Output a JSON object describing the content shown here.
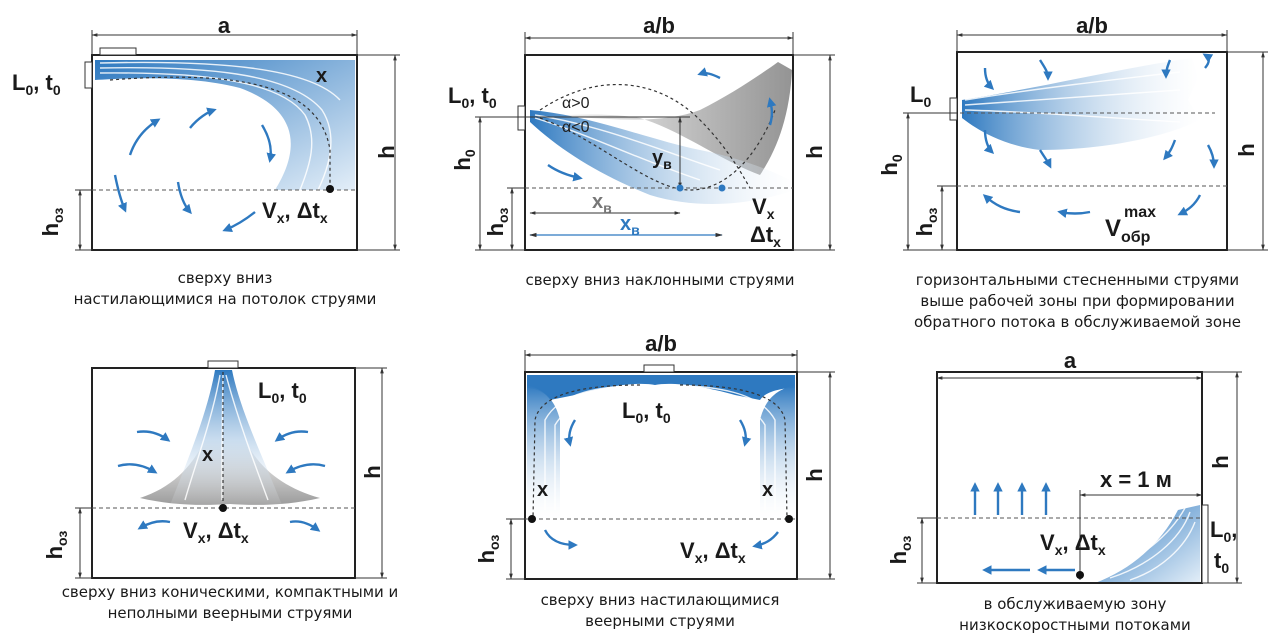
{
  "colors": {
    "jet": "#2e79c0",
    "jet_light": "#cfe1f3",
    "text": "#1a1a1a",
    "grey_plume": "#8c8c8c"
  },
  "panels": [
    {
      "id": "p1",
      "dim_top": "a",
      "dim_h": "h",
      "dim_hoz_main": "h",
      "dim_hoz_sub": "оз",
      "supply_main": "L",
      "supply_sub1": "0",
      "supply_sep": ", t",
      "supply_sub2": "0",
      "x_label": "x",
      "point_v": "V",
      "point_v_sub": "x",
      "point_sep": ", ",
      "point_dt": "Δt",
      "point_dt_sub": "x",
      "caption": [
        "сверху вниз",
        "настилающимися на потолок струями"
      ]
    },
    {
      "id": "p2",
      "dim_top": "a/b",
      "dim_h": "h",
      "dim_h0_main": "h",
      "dim_h0_sub": "0",
      "dim_hoz_main": "h",
      "dim_hoz_sub": "оз",
      "supply_main": "L",
      "supply_sub1": "0",
      "supply_sep": ", t",
      "supply_sub2": "0",
      "alpha_pos": "α>0",
      "alpha_neg": "α<0",
      "yv_main": "y",
      "yv_sub": "в",
      "xv_grey_main": "x",
      "xv_grey_sub": "в",
      "xv_blue_main": "x",
      "xv_blue_sub": "в",
      "vx_main": "V",
      "vx_sub": "x",
      "dtx_main": "Δt",
      "dtx_sub": "x",
      "caption": [
        "сверху вниз наклонными струями"
      ]
    },
    {
      "id": "p3",
      "dim_top": "a/b",
      "dim_h": "h",
      "dim_h0_main": "h",
      "dim_h0_sub": "0",
      "dim_hoz_main": "h",
      "dim_hoz_sub": "оз",
      "supply_main": "L",
      "supply_sub1": "0",
      "vobr_main": "V",
      "vobr_sub": "обр",
      "vobr_sup": "max",
      "caption": [
        "горизонтальными стесненными струями",
        "выше рабочей зоны при формировании",
        "обратного потока в обслуживаемой зоне"
      ]
    },
    {
      "id": "p4",
      "dim_h": "h",
      "dim_hoz_main": "h",
      "dim_hoz_sub": "оз",
      "supply_main": "L",
      "supply_sub1": "0",
      "supply_sep": ", t",
      "supply_sub2": "0",
      "x_label": "x",
      "point_v": "V",
      "point_v_sub": "x",
      "point_sep": ", ",
      "point_dt": "Δt",
      "point_dt_sub": "x",
      "caption": [
        "сверху вниз коническими, компактными и",
        "неполными веерными струями"
      ]
    },
    {
      "id": "p5",
      "dim_top": "a/b",
      "dim_h": "h",
      "dim_hoz_main": "h",
      "dim_hoz_sub": "оз",
      "supply_main": "L",
      "supply_sub1": "0",
      "supply_sep": ", t",
      "supply_sub2": "0",
      "x_left": "x",
      "x_right": "x",
      "point_v": "V",
      "point_v_sub": "x",
      "point_sep": ", ",
      "point_dt": "Δt",
      "point_dt_sub": "x",
      "caption": [
        "сверху вниз настилающимися",
        "веерными струями"
      ]
    },
    {
      "id": "p6",
      "dim_top": "a",
      "dim_h": "h",
      "dim_hoz_main": "h",
      "dim_hoz_sub": "оз",
      "x_eq": "x = 1 м",
      "supply_main": "L",
      "supply_sub1": "0",
      "supply_comma": ",",
      "supply_t": "t",
      "supply_sub2": "0",
      "point_v": "V",
      "point_v_sub": "x",
      "point_sep": ", ",
      "point_dt": "Δt",
      "point_dt_sub": "x",
      "caption": [
        "в обслуживаемую зону",
        "низкоскоростными потоками"
      ]
    }
  ]
}
